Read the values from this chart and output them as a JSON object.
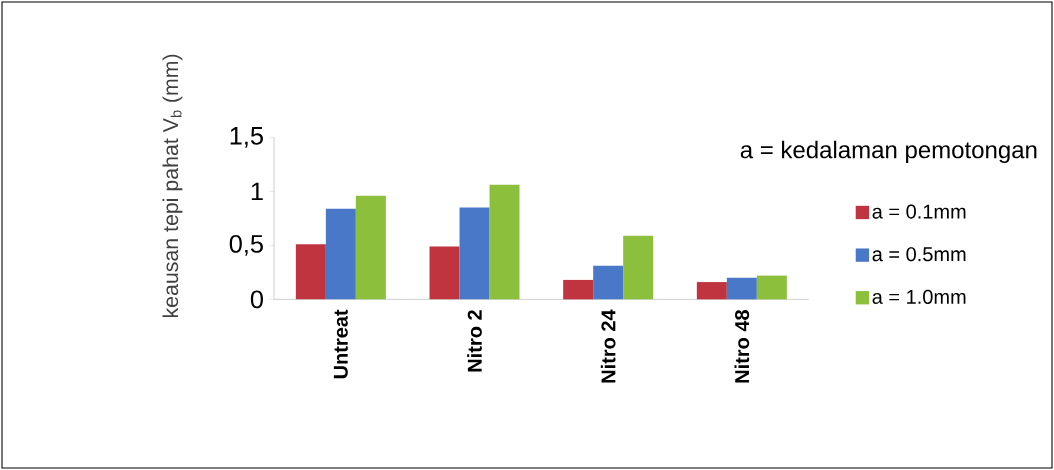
{
  "chart_data": {
    "type": "bar",
    "ylabel": "keausan tepi pahat V$_{b}$ (mm)",
    "legend_title": "a = kedalaman pemotongan",
    "categories": [
      "Untreat",
      "Nitro 2",
      "Nitro 24",
      "Nitro 48"
    ],
    "series": [
      {
        "name": "a = 0.1mm",
        "color": "#c0343f",
        "values": [
          0.51,
          0.49,
          0.18,
          0.16
        ]
      },
      {
        "name": "a = 0.5mm",
        "color": "#4a78c8",
        "values": [
          0.84,
          0.85,
          0.31,
          0.2
        ]
      },
      {
        "name": "a = 1.0mm",
        "color": "#8cbf3c",
        "values": [
          0.96,
          1.06,
          0.59,
          0.22
        ]
      }
    ],
    "ylim": [
      0,
      1.5
    ],
    "yticks": [
      0,
      {
        "value": 0.5,
        "label": "0,5"
      },
      1,
      {
        "value": 1.5,
        "label": "1,5"
      }
    ],
    "grid": false,
    "legend": "right"
  }
}
